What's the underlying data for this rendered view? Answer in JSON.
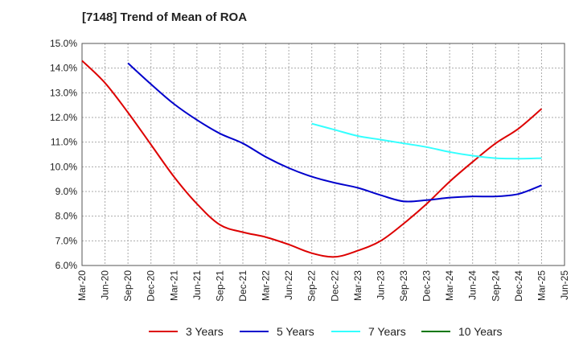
{
  "chart_data": {
    "type": "line",
    "title": "[7148]  Trend of Mean of ROA",
    "xlabel": "",
    "ylabel": "",
    "x": [
      "Mar-20",
      "Jun-20",
      "Sep-20",
      "Dec-20",
      "Mar-21",
      "Jun-21",
      "Sep-21",
      "Dec-21",
      "Mar-22",
      "Jun-22",
      "Sep-22",
      "Dec-22",
      "Mar-23",
      "Jun-23",
      "Sep-23",
      "Dec-23",
      "Mar-24",
      "Jun-24",
      "Sep-24",
      "Dec-24",
      "Mar-25",
      "Jun-25"
    ],
    "ylim": [
      6.0,
      15.0
    ],
    "yticks": [
      "6.0%",
      "7.0%",
      "8.0%",
      "9.0%",
      "10.0%",
      "11.0%",
      "12.0%",
      "13.0%",
      "14.0%",
      "15.0%"
    ],
    "yticks_values": [
      6,
      7,
      8,
      9,
      10,
      11,
      12,
      13,
      14,
      15
    ],
    "grid": true,
    "legend_position": "bottom",
    "series": [
      {
        "name": "3 Years",
        "color": "#dd0000",
        "values": [
          14.3,
          13.4,
          12.2,
          10.9,
          9.6,
          8.5,
          7.65,
          7.35,
          7.15,
          6.85,
          6.5,
          6.35,
          6.6,
          7.0,
          7.7,
          8.5,
          9.4,
          10.2,
          10.95,
          11.55,
          12.35,
          null
        ]
      },
      {
        "name": "5 Years",
        "color": "#0000cc",
        "values": [
          null,
          null,
          14.2,
          13.35,
          12.55,
          11.9,
          11.35,
          10.95,
          10.4,
          9.95,
          9.6,
          9.35,
          9.15,
          8.85,
          8.6,
          8.65,
          8.75,
          8.8,
          8.8,
          8.9,
          9.25,
          null
        ]
      },
      {
        "name": "7 Years",
        "color": "#33ffff",
        "values": [
          null,
          null,
          null,
          null,
          null,
          null,
          null,
          null,
          null,
          null,
          11.75,
          11.5,
          11.25,
          11.1,
          10.95,
          10.8,
          10.6,
          10.45,
          10.35,
          10.33,
          10.35,
          null
        ]
      },
      {
        "name": "10 Years",
        "color": "#007700",
        "values": [
          null,
          null,
          null,
          null,
          null,
          null,
          null,
          null,
          null,
          null,
          null,
          null,
          null,
          null,
          null,
          null,
          null,
          null,
          null,
          null,
          null,
          null
        ]
      }
    ]
  }
}
